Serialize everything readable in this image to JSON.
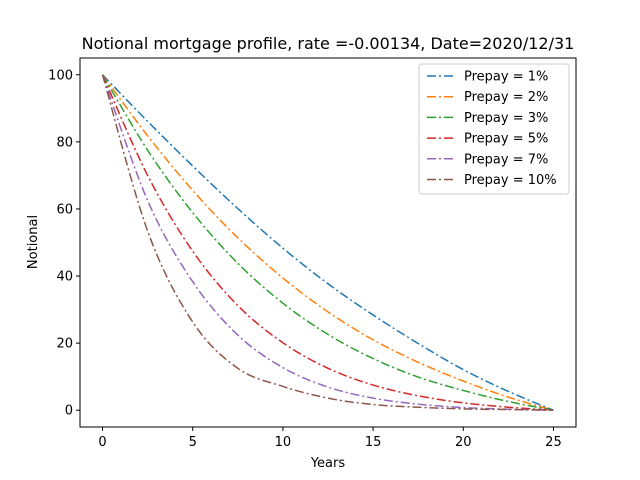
{
  "chart_data": {
    "type": "line",
    "title": "Notional mortgage profile, rate =-0.00134, Date=2020/12/31",
    "xlabel": "Years",
    "ylabel": "Notional",
    "xlim": [
      -1.25,
      26.25
    ],
    "ylim": [
      -5,
      105
    ],
    "x_ticks": [
      0,
      5,
      10,
      15,
      20,
      25
    ],
    "y_ticks": [
      0,
      20,
      40,
      60,
      80,
      100
    ],
    "line_style": "dash-dot",
    "legend_position": "upper right",
    "series": [
      {
        "name": "Prepay = 1%",
        "color": "#1f77b4",
        "x": [
          0,
          2.5,
          5,
          7.5,
          10,
          12.5,
          15,
          17.5,
          20,
          22.5,
          25
        ],
        "values": [
          100,
          86.1,
          72.8,
          60.1,
          48.3,
          37.7,
          28.4,
          19.9,
          12.1,
          5.6,
          0
        ]
      },
      {
        "name": "Prepay = 2%",
        "color": "#ff7f0e",
        "x": [
          0,
          2.5,
          5,
          7.5,
          10,
          12.5,
          15,
          17.5,
          20,
          22.5,
          25
        ],
        "values": [
          100,
          81.8,
          65.5,
          51.4,
          39.4,
          29.3,
          21.0,
          14.3,
          8.7,
          3.9,
          0
        ]
      },
      {
        "name": "Prepay = 3%",
        "color": "#2ca02c",
        "x": [
          0,
          2.5,
          5,
          7.5,
          10,
          12.5,
          15,
          17.5,
          20,
          22.5,
          25
        ],
        "values": [
          100,
          77.5,
          58.9,
          43.8,
          31.9,
          22.6,
          15.4,
          9.9,
          5.9,
          2.6,
          0
        ]
      },
      {
        "name": "Prepay = 5%",
        "color": "#d62728",
        "x": [
          0,
          2.5,
          5,
          7.5,
          10,
          12.5,
          15,
          17.5,
          20,
          22.5,
          25
        ],
        "values": [
          100,
          70.0,
          47.4,
          31.2,
          20.1,
          12.5,
          7.5,
          4.3,
          2.2,
          0.9,
          0
        ]
      },
      {
        "name": "Prepay = 7%",
        "color": "#9467bd",
        "x": [
          0,
          2.5,
          5,
          7.5,
          10,
          12.5,
          15,
          17.5,
          20,
          22.5,
          25
        ],
        "values": [
          100,
          62.5,
          38.3,
          22.4,
          12.7,
          6.9,
          3.6,
          1.8,
          0.8,
          0.3,
          0
        ]
      },
      {
        "name": "Prepay = 10%",
        "color": "#8c564b",
        "x": [
          0,
          2.5,
          5,
          7.5,
          10,
          12.5,
          15,
          17.5,
          20,
          22.5,
          25
        ],
        "values": [
          100,
          53.4,
          26.3,
          12.5,
          7.1,
          3.6,
          1.7,
          0.9,
          0.4,
          0.2,
          0
        ]
      }
    ]
  }
}
